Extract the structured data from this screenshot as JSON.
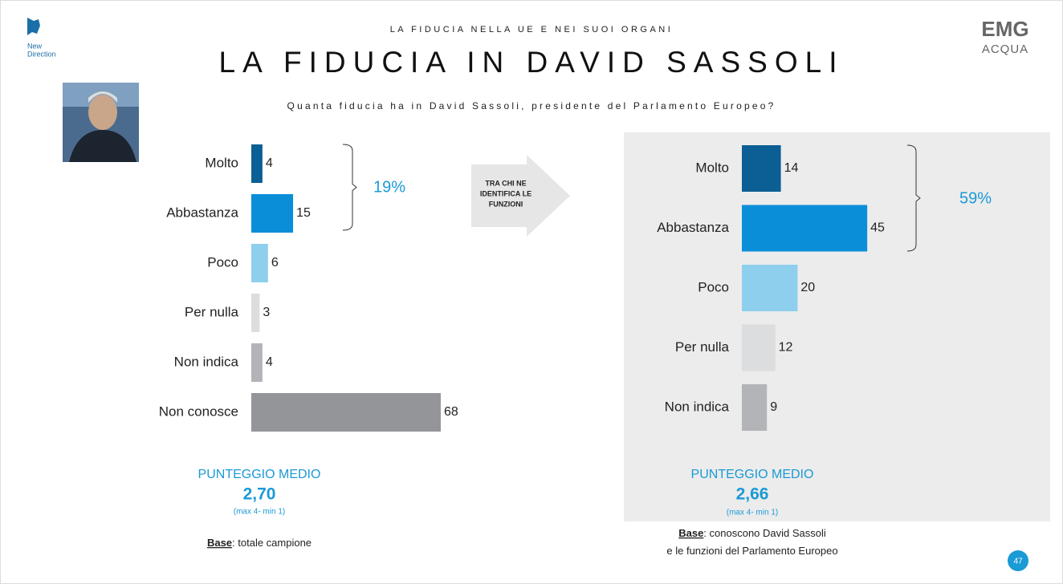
{
  "header": {
    "supertitle": "LA FIDUCIA NELLA UE E NEI SUOI ORGANI",
    "title": "LA FIDUCIA IN DAVID SASSOLI",
    "question": "Quanta fiducia ha in David Sassoli, presidente del Parlamento Europeo?",
    "left_logo": [
      "New",
      "Direction"
    ],
    "right_logo": [
      "EMG",
      "ACQUA"
    ]
  },
  "arrow_text": [
    "TRA CHI  NE",
    "IDENTIFICA LE",
    "FUNZIONI"
  ],
  "page_number": "47",
  "chart_data": [
    {
      "type": "bar",
      "orientation": "horizontal",
      "categories": [
        "Molto",
        "Abbastanza",
        "Poco",
        "Per nulla",
        "Non indica",
        "Non conosce"
      ],
      "values": [
        4,
        15,
        6,
        3,
        4,
        68
      ],
      "colors": [
        "#0b5f94",
        "#0b8ed8",
        "#8ecfee",
        "#dcdddf",
        "#b2b4b7",
        "#949599"
      ],
      "bracket_label": "19%",
      "score_label": "PUNTEGGIO MEDIO",
      "score": "2,70",
      "score_note": "(max 4- min 1)",
      "base_label": "Base",
      "base_text": [
        ": totale campione"
      ]
    },
    {
      "type": "bar",
      "orientation": "horizontal",
      "categories": [
        "Molto",
        "Abbastanza",
        "Poco",
        "Per nulla",
        "Non indica"
      ],
      "values": [
        14,
        45,
        20,
        12,
        9
      ],
      "colors": [
        "#0b5f94",
        "#0b8ed8",
        "#8ecfee",
        "#dcdddf",
        "#b2b4b7"
      ],
      "bracket_label": "59%",
      "score_label": "PUNTEGGIO MEDIO",
      "score": "2,66",
      "score_note": "(max 4- min 1)",
      "base_label": "Base",
      "base_text": [
        ": conoscono David Sassoli",
        "e le funzioni del Parlamento Europeo"
      ]
    }
  ]
}
